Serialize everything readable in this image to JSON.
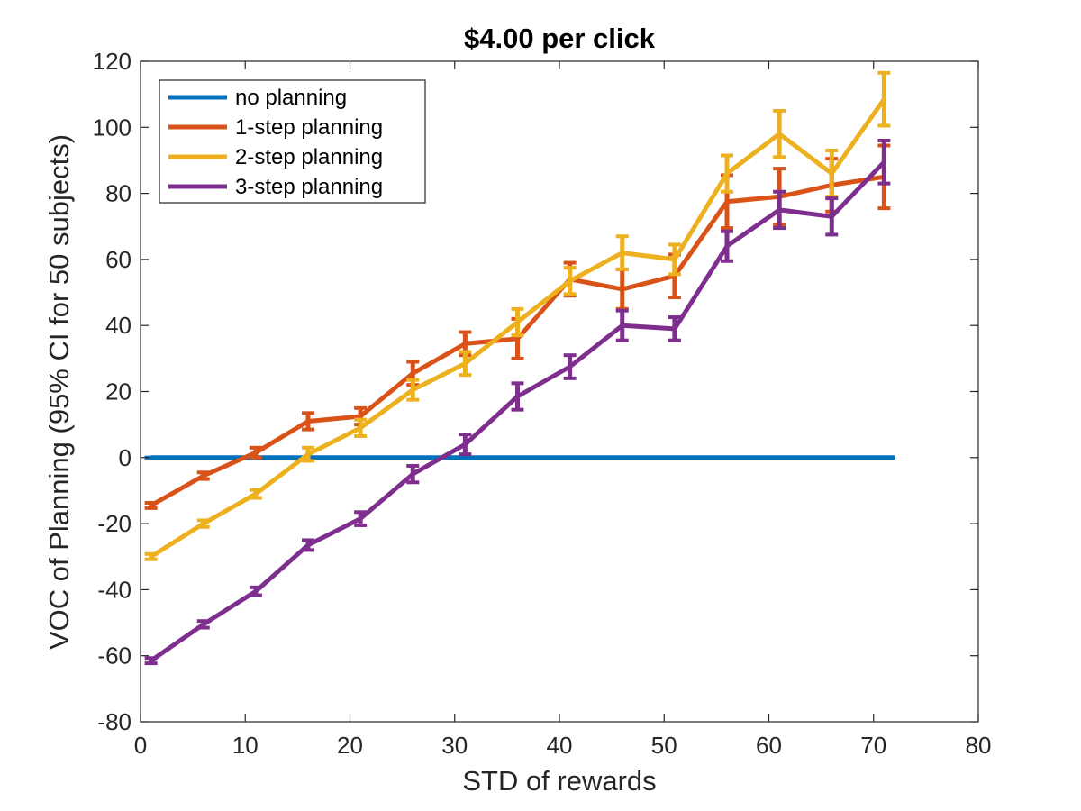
{
  "chart_data": {
    "type": "line",
    "title": "$4.00 per click",
    "xlabel": "STD of rewards",
    "ylabel": "VOC of Planning (95% CI for 50 subjects)",
    "xlim": [
      0,
      80
    ],
    "ylim": [
      -80,
      120
    ],
    "x_ticks": [
      0,
      10,
      20,
      30,
      40,
      50,
      60,
      70,
      80
    ],
    "y_ticks": [
      -80,
      -60,
      -40,
      -20,
      0,
      20,
      40,
      60,
      80,
      100,
      120
    ],
    "grid": false,
    "legend_position": "top-left",
    "x": [
      1,
      6,
      11,
      16,
      21,
      26,
      31,
      36,
      41,
      46,
      51,
      56,
      61,
      66,
      71
    ],
    "series": [
      {
        "name": "no planning",
        "color": "#0072BD",
        "values": [
          0,
          0,
          0,
          0,
          0,
          0,
          0,
          0,
          0,
          0,
          0,
          0,
          0,
          0,
          0
        ],
        "ci": [
          0,
          0,
          0,
          0,
          0,
          0,
          0,
          0,
          0,
          0,
          0,
          0,
          0,
          0,
          0
        ],
        "x_last": 72
      },
      {
        "name": "1-step planning",
        "color": "#D95319",
        "values": [
          -14.5,
          -5.5,
          1.5,
          11,
          12.5,
          25.5,
          34.5,
          36,
          54,
          51,
          55,
          77.5,
          79,
          82.5,
          85
        ],
        "ci": [
          0.8,
          1,
          1.5,
          2.5,
          2.5,
          3.5,
          3.5,
          6,
          5,
          6,
          6.5,
          8,
          8.5,
          8,
          9.5
        ]
      },
      {
        "name": "2-step planning",
        "color": "#EDB120",
        "values": [
          -30,
          -20,
          -11,
          1,
          9,
          20.5,
          28.5,
          41,
          53.5,
          62,
          60,
          86,
          98,
          86,
          108.5
        ],
        "ci": [
          0.8,
          1,
          1.2,
          2,
          2.5,
          3,
          3.5,
          4,
          4,
          5,
          4.5,
          5.5,
          7,
          7,
          8
        ]
      },
      {
        "name": "3-step planning",
        "color": "#7E2F8E",
        "values": [
          -61.5,
          -50.5,
          -40.5,
          -26.5,
          -18.5,
          -5,
          4,
          18.5,
          27.5,
          40,
          39,
          64,
          75,
          73,
          89.5
        ],
        "ci": [
          0.8,
          1,
          1.2,
          1.5,
          2,
          2.5,
          3,
          4,
          3.5,
          4.5,
          3.5,
          4.5,
          5.5,
          5.5,
          6.5
        ]
      }
    ]
  }
}
